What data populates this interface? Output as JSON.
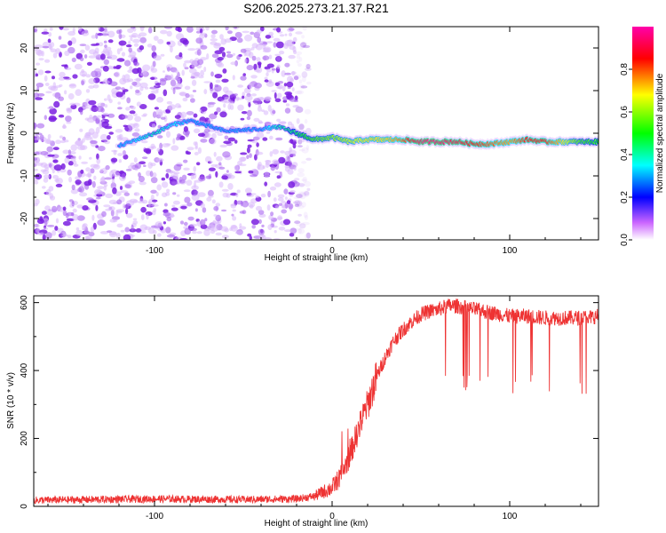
{
  "figure": {
    "title": "S206.2025.273.21.37.R21"
  },
  "chart_data": [
    {
      "type": "heatmap",
      "xlabel": "Height of straight line (km)",
      "ylabel": "Frequency (Hz)",
      "xlim": [
        -168,
        150
      ],
      "ylim": [
        -25,
        25
      ],
      "xticks": [
        -100,
        0,
        100
      ],
      "yticks": [
        -20,
        -10,
        0,
        10,
        20
      ],
      "colorbar": {
        "label": "Normalized spectral amplitude",
        "range": [
          0,
          1
        ],
        "ticks": [
          "0.0",
          "0.2",
          "0.4",
          "0.6",
          "0.8"
        ],
        "colors": [
          "#ffffff",
          "#cc66ff",
          "#0000ff",
          "#00ffff",
          "#00ff00",
          "#ffff00",
          "#ff0000",
          "#ff00aa"
        ]
      },
      "noise_region_x": [
        -168,
        -20
      ],
      "ridge": {
        "x": [
          -120,
          -110,
          -100,
          -90,
          -80,
          -60,
          -40,
          -30,
          -20,
          -10,
          0,
          10,
          20,
          30,
          40,
          50,
          60,
          70,
          80,
          90,
          100,
          110,
          120,
          130,
          140,
          150
        ],
        "y": [
          -3,
          -1.5,
          0,
          2,
          3,
          0.5,
          1,
          1.5,
          0,
          -1.5,
          -1,
          -2,
          -1.5,
          -1.5,
          -1.5,
          -2,
          -2,
          -2,
          -2.5,
          -2.5,
          -2,
          -1.5,
          -2,
          -2,
          -2,
          -2
        ],
        "amplitude": [
          0.3,
          0.35,
          0.4,
          0.35,
          0.3,
          0.3,
          0.3,
          0.4,
          0.45,
          0.55,
          0.6,
          0.65,
          0.7,
          0.7,
          0.8,
          0.95,
          0.95,
          0.9,
          0.85,
          0.8,
          0.75,
          0.85,
          0.85,
          0.7,
          0.55,
          0.5
        ]
      }
    },
    {
      "type": "line",
      "xlabel": "Height of straight line (km)",
      "ylabel": "SNR (10 * v/v)",
      "xlim": [
        -168,
        150
      ],
      "ylim": [
        0,
        620
      ],
      "xticks": [
        -100,
        0,
        100
      ],
      "yticks": [
        0,
        200,
        400,
        600
      ],
      "line_color": "#ee3333",
      "series": [
        {
          "x": [
            -168,
            -100,
            -50,
            -20,
            -10,
            0,
            5,
            10,
            15,
            20,
            25,
            30,
            35,
            40,
            45,
            50,
            55,
            60,
            65,
            70,
            80,
            90,
            100,
            110,
            120,
            130,
            140,
            150
          ],
          "values": [
            18,
            22,
            20,
            22,
            30,
            55,
            90,
            150,
            230,
            300,
            380,
            440,
            490,
            520,
            545,
            565,
            575,
            580,
            590,
            590,
            580,
            570,
            560,
            560,
            555,
            555,
            555,
            560
          ]
        }
      ],
      "dropouts": {
        "x_range": [
          58,
          145
        ],
        "min_value": 330
      }
    }
  ]
}
